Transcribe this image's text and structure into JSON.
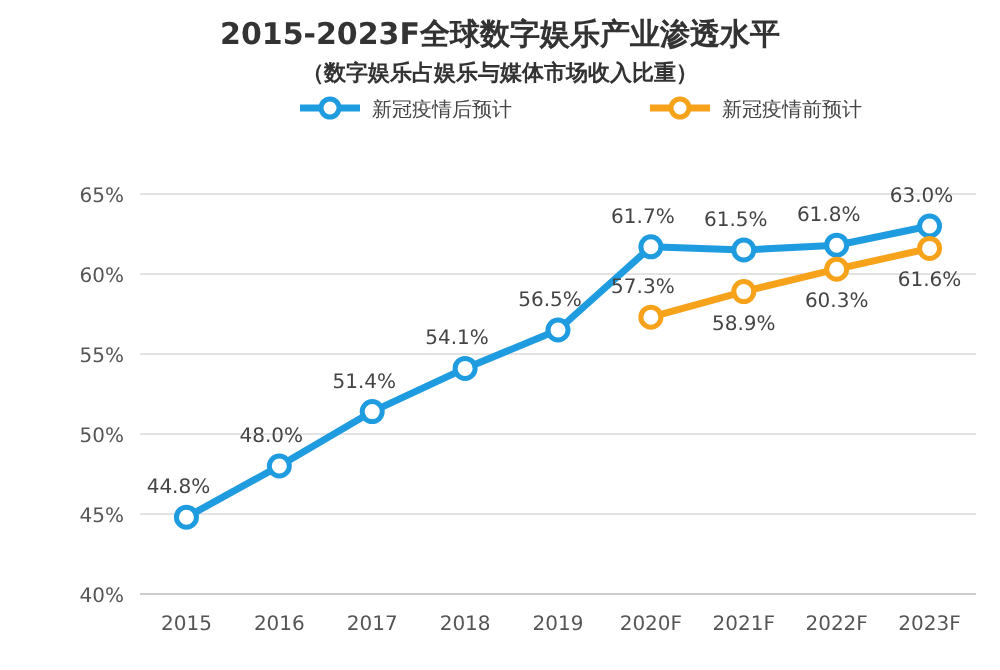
{
  "chart_data": {
    "type": "line",
    "title": "2015-2023F全球数字娱乐产业渗透水平",
    "subtitle": "（数字娱乐占娱乐与媒体市场收入比重）",
    "categories": [
      "2015",
      "2016",
      "2017",
      "2018",
      "2019",
      "2020F",
      "2021F",
      "2022F",
      "2023F"
    ],
    "series": [
      {
        "name": "新冠疫情后预计",
        "color": "#1f9be0",
        "values": [
          44.8,
          48.0,
          51.4,
          54.1,
          56.5,
          61.7,
          61.5,
          61.8,
          63.0
        ],
        "value_labels": [
          "44.8%",
          "48.0%",
          "51.4%",
          "54.1%",
          "56.5%",
          "61.7%",
          "61.5%",
          "61.8%",
          "63.0%"
        ]
      },
      {
        "name": "新冠疫情前预计",
        "color": "#f7a21b",
        "values": [
          null,
          null,
          null,
          null,
          null,
          57.3,
          58.9,
          60.3,
          61.6
        ],
        "value_labels": [
          null,
          null,
          null,
          null,
          null,
          "57.3%",
          "58.9%",
          "60.3%",
          "61.6%"
        ]
      }
    ],
    "ylim": [
      40,
      65
    ],
    "yticks": [
      {
        "value": 40,
        "label": "40%"
      },
      {
        "value": 45,
        "label": "45%"
      },
      {
        "value": 50,
        "label": "50%"
      },
      {
        "value": 55,
        "label": "55%"
      },
      {
        "value": 60,
        "label": "60%"
      },
      {
        "value": 65,
        "label": "65%"
      }
    ],
    "grid": "y",
    "legend": "top",
    "marker": "circle",
    "line_style": "solid"
  }
}
